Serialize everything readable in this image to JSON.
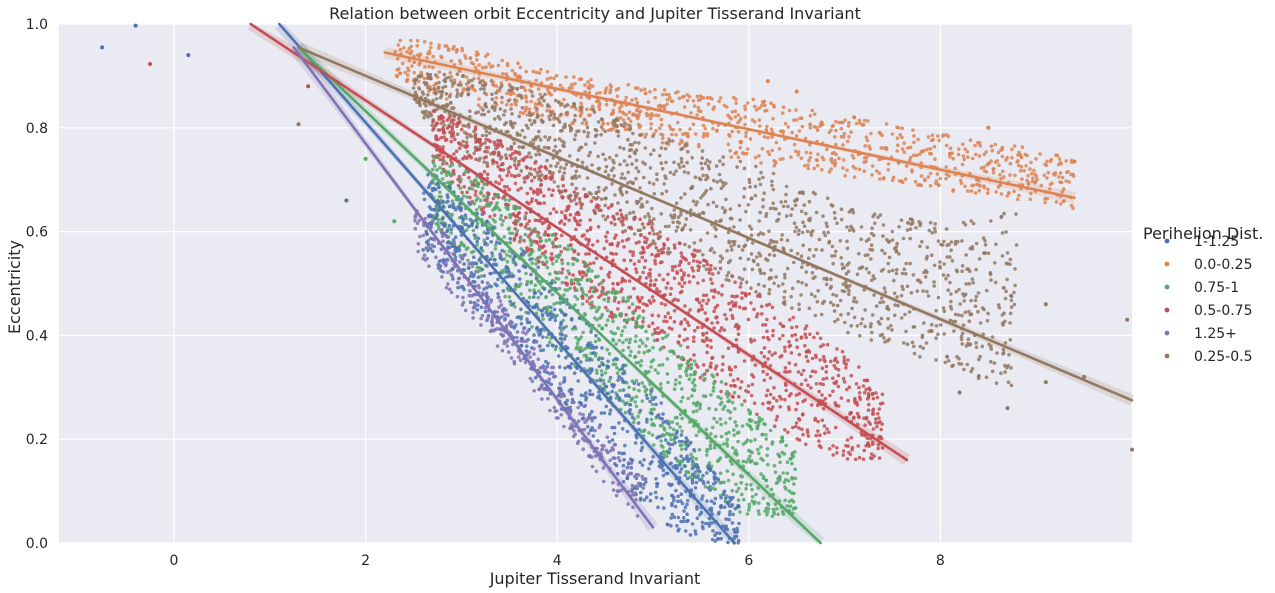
{
  "chart_data": {
    "type": "scatter",
    "title": "Relation between orbit Eccentricity and Jupiter Tisserand Invariant",
    "xlabel": "Jupiter Tisserand Invariant",
    "ylabel": "Eccentricity",
    "xlim": [
      -1.2,
      10.0
    ],
    "ylim": [
      0.0,
      1.0
    ],
    "xticks": [
      0,
      2,
      4,
      6,
      8
    ],
    "yticks": [
      0.0,
      0.2,
      0.4,
      0.6,
      0.8,
      1.0
    ],
    "xtick_labels": [
      "0",
      "2",
      "4",
      "6",
      "8"
    ],
    "ytick_labels": [
      "0.0",
      "0.2",
      "0.4",
      "0.6",
      "0.8",
      "1.0"
    ],
    "grid": true,
    "background": "#eaeaf2",
    "legend": {
      "title": "Perihelion Dist.",
      "placement": "right"
    },
    "series": [
      {
        "name": "1-1.25",
        "color": "#4c72b0",
        "regression": {
          "x": [
            1.1,
            5.85
          ],
          "y": [
            1.0,
            0.0
          ]
        },
        "cloud": [
          {
            "x": 2.6,
            "ylo": 0.57,
            "yhi": 0.72
          },
          {
            "x": 3.0,
            "ylo": 0.49,
            "yhi": 0.66
          },
          {
            "x": 3.5,
            "ylo": 0.39,
            "yhi": 0.58
          },
          {
            "x": 4.0,
            "ylo": 0.28,
            "yhi": 0.48
          },
          {
            "x": 4.5,
            "ylo": 0.16,
            "yhi": 0.38
          },
          {
            "x": 5.0,
            "ylo": 0.06,
            "yhi": 0.28
          },
          {
            "x": 5.5,
            "ylo": 0.01,
            "yhi": 0.16
          },
          {
            "x": 5.9,
            "ylo": 0.0,
            "yhi": 0.07
          }
        ],
        "outliers": [
          [
            -0.75,
            0.955
          ],
          [
            -0.4,
            0.997
          ],
          [
            0.15,
            0.94
          ],
          [
            1.8,
            0.66
          ]
        ]
      },
      {
        "name": "0.0-0.25",
        "color": "#dd8452",
        "regression": {
          "x": [
            2.2,
            9.4
          ],
          "y": [
            0.945,
            0.665
          ]
        },
        "cloud": [
          {
            "x": 2.3,
            "ylo": 0.9,
            "yhi": 0.97
          },
          {
            "x": 3.0,
            "ylo": 0.85,
            "yhi": 0.95
          },
          {
            "x": 4.0,
            "ylo": 0.82,
            "yhi": 0.9
          },
          {
            "x": 5.0,
            "ylo": 0.78,
            "yhi": 0.87
          },
          {
            "x": 6.0,
            "ylo": 0.74,
            "yhi": 0.85
          },
          {
            "x": 7.5,
            "ylo": 0.7,
            "yhi": 0.8
          },
          {
            "x": 9.4,
            "ylo": 0.65,
            "yhi": 0.74
          }
        ],
        "outliers": [
          [
            6.2,
            0.89
          ],
          [
            6.5,
            0.87
          ],
          [
            7.1,
            0.82
          ],
          [
            8.5,
            0.8
          ],
          [
            9.4,
            0.735
          ],
          [
            8.1,
            0.75
          ]
        ]
      },
      {
        "name": "0.75-1",
        "color": "#55a868",
        "regression": {
          "x": [
            1.3,
            6.75
          ],
          "y": [
            0.955,
            0.0
          ]
        },
        "cloud": [
          {
            "x": 2.7,
            "ylo": 0.62,
            "yhi": 0.74
          },
          {
            "x": 3.0,
            "ylo": 0.56,
            "yhi": 0.72
          },
          {
            "x": 3.5,
            "ylo": 0.47,
            "yhi": 0.65
          },
          {
            "x": 4.0,
            "ylo": 0.38,
            "yhi": 0.58
          },
          {
            "x": 4.5,
            "ylo": 0.29,
            "yhi": 0.5
          },
          {
            "x": 5.0,
            "ylo": 0.2,
            "yhi": 0.42
          },
          {
            "x": 5.5,
            "ylo": 0.12,
            "yhi": 0.33
          },
          {
            "x": 6.0,
            "ylo": 0.06,
            "yhi": 0.26
          },
          {
            "x": 6.5,
            "ylo": 0.06,
            "yhi": 0.17
          }
        ],
        "outliers": [
          [
            2.0,
            0.74
          ],
          [
            2.3,
            0.62
          ]
        ]
      },
      {
        "name": "0.5-0.75",
        "color": "#c44e52",
        "regression": {
          "x": [
            0.8,
            7.65
          ],
          "y": [
            1.0,
            0.16
          ]
        },
        "cloud": [
          {
            "x": 2.7,
            "ylo": 0.74,
            "yhi": 0.83
          },
          {
            "x": 3.0,
            "ylo": 0.68,
            "yhi": 0.81
          },
          {
            "x": 3.5,
            "ylo": 0.6,
            "yhi": 0.76
          },
          {
            "x": 4.0,
            "ylo": 0.52,
            "yhi": 0.7
          },
          {
            "x": 4.5,
            "ylo": 0.45,
            "yhi": 0.65
          },
          {
            "x": 5.0,
            "ylo": 0.4,
            "yhi": 0.6
          },
          {
            "x": 5.5,
            "ylo": 0.33,
            "yhi": 0.55
          },
          {
            "x": 6.0,
            "ylo": 0.27,
            "yhi": 0.48
          },
          {
            "x": 6.5,
            "ylo": 0.21,
            "yhi": 0.42
          },
          {
            "x": 7.0,
            "ylo": 0.17,
            "yhi": 0.36
          },
          {
            "x": 7.4,
            "ylo": 0.17,
            "yhi": 0.28
          }
        ],
        "outliers": [
          [
            -0.25,
            0.923
          ],
          [
            1.4,
            0.88
          ]
        ]
      },
      {
        "name": "1.25+",
        "color": "#8172b3",
        "regression": {
          "x": [
            1.25,
            5.0
          ],
          "y": [
            0.955,
            0.03
          ]
        },
        "cloud": [
          {
            "x": 2.5,
            "ylo": 0.57,
            "yhi": 0.66
          },
          {
            "x": 3.0,
            "ylo": 0.46,
            "yhi": 0.56
          },
          {
            "x": 3.5,
            "ylo": 0.36,
            "yhi": 0.45
          },
          {
            "x": 4.0,
            "ylo": 0.24,
            "yhi": 0.33
          },
          {
            "x": 4.5,
            "ylo": 0.12,
            "yhi": 0.21
          },
          {
            "x": 4.9,
            "ylo": 0.03,
            "yhi": 0.12
          }
        ],
        "outliers": []
      },
      {
        "name": "0.25-0.5",
        "color": "#937860",
        "regression": {
          "x": [
            1.3,
            10.0
          ],
          "y": [
            0.955,
            0.275
          ]
        },
        "cloud": [
          {
            "x": 2.5,
            "ylo": 0.84,
            "yhi": 0.9
          },
          {
            "x": 3.0,
            "ylo": 0.76,
            "yhi": 0.9
          },
          {
            "x": 4.0,
            "ylo": 0.68,
            "yhi": 0.85
          },
          {
            "x": 5.0,
            "ylo": 0.58,
            "yhi": 0.78
          },
          {
            "x": 6.0,
            "ylo": 0.5,
            "yhi": 0.72
          },
          {
            "x": 7.0,
            "ylo": 0.42,
            "yhi": 0.64
          },
          {
            "x": 8.0,
            "ylo": 0.36,
            "yhi": 0.6
          },
          {
            "x": 8.8,
            "ylo": 0.3,
            "yhi": 0.62
          }
        ],
        "outliers": [
          [
            1.3,
            0.807
          ],
          [
            9.1,
            0.46
          ],
          [
            9.5,
            0.32
          ],
          [
            9.1,
            0.31
          ],
          [
            8.7,
            0.26
          ],
          [
            8.2,
            0.29
          ],
          [
            10.0,
            0.18
          ],
          [
            9.95,
            0.43
          ]
        ]
      }
    ]
  }
}
